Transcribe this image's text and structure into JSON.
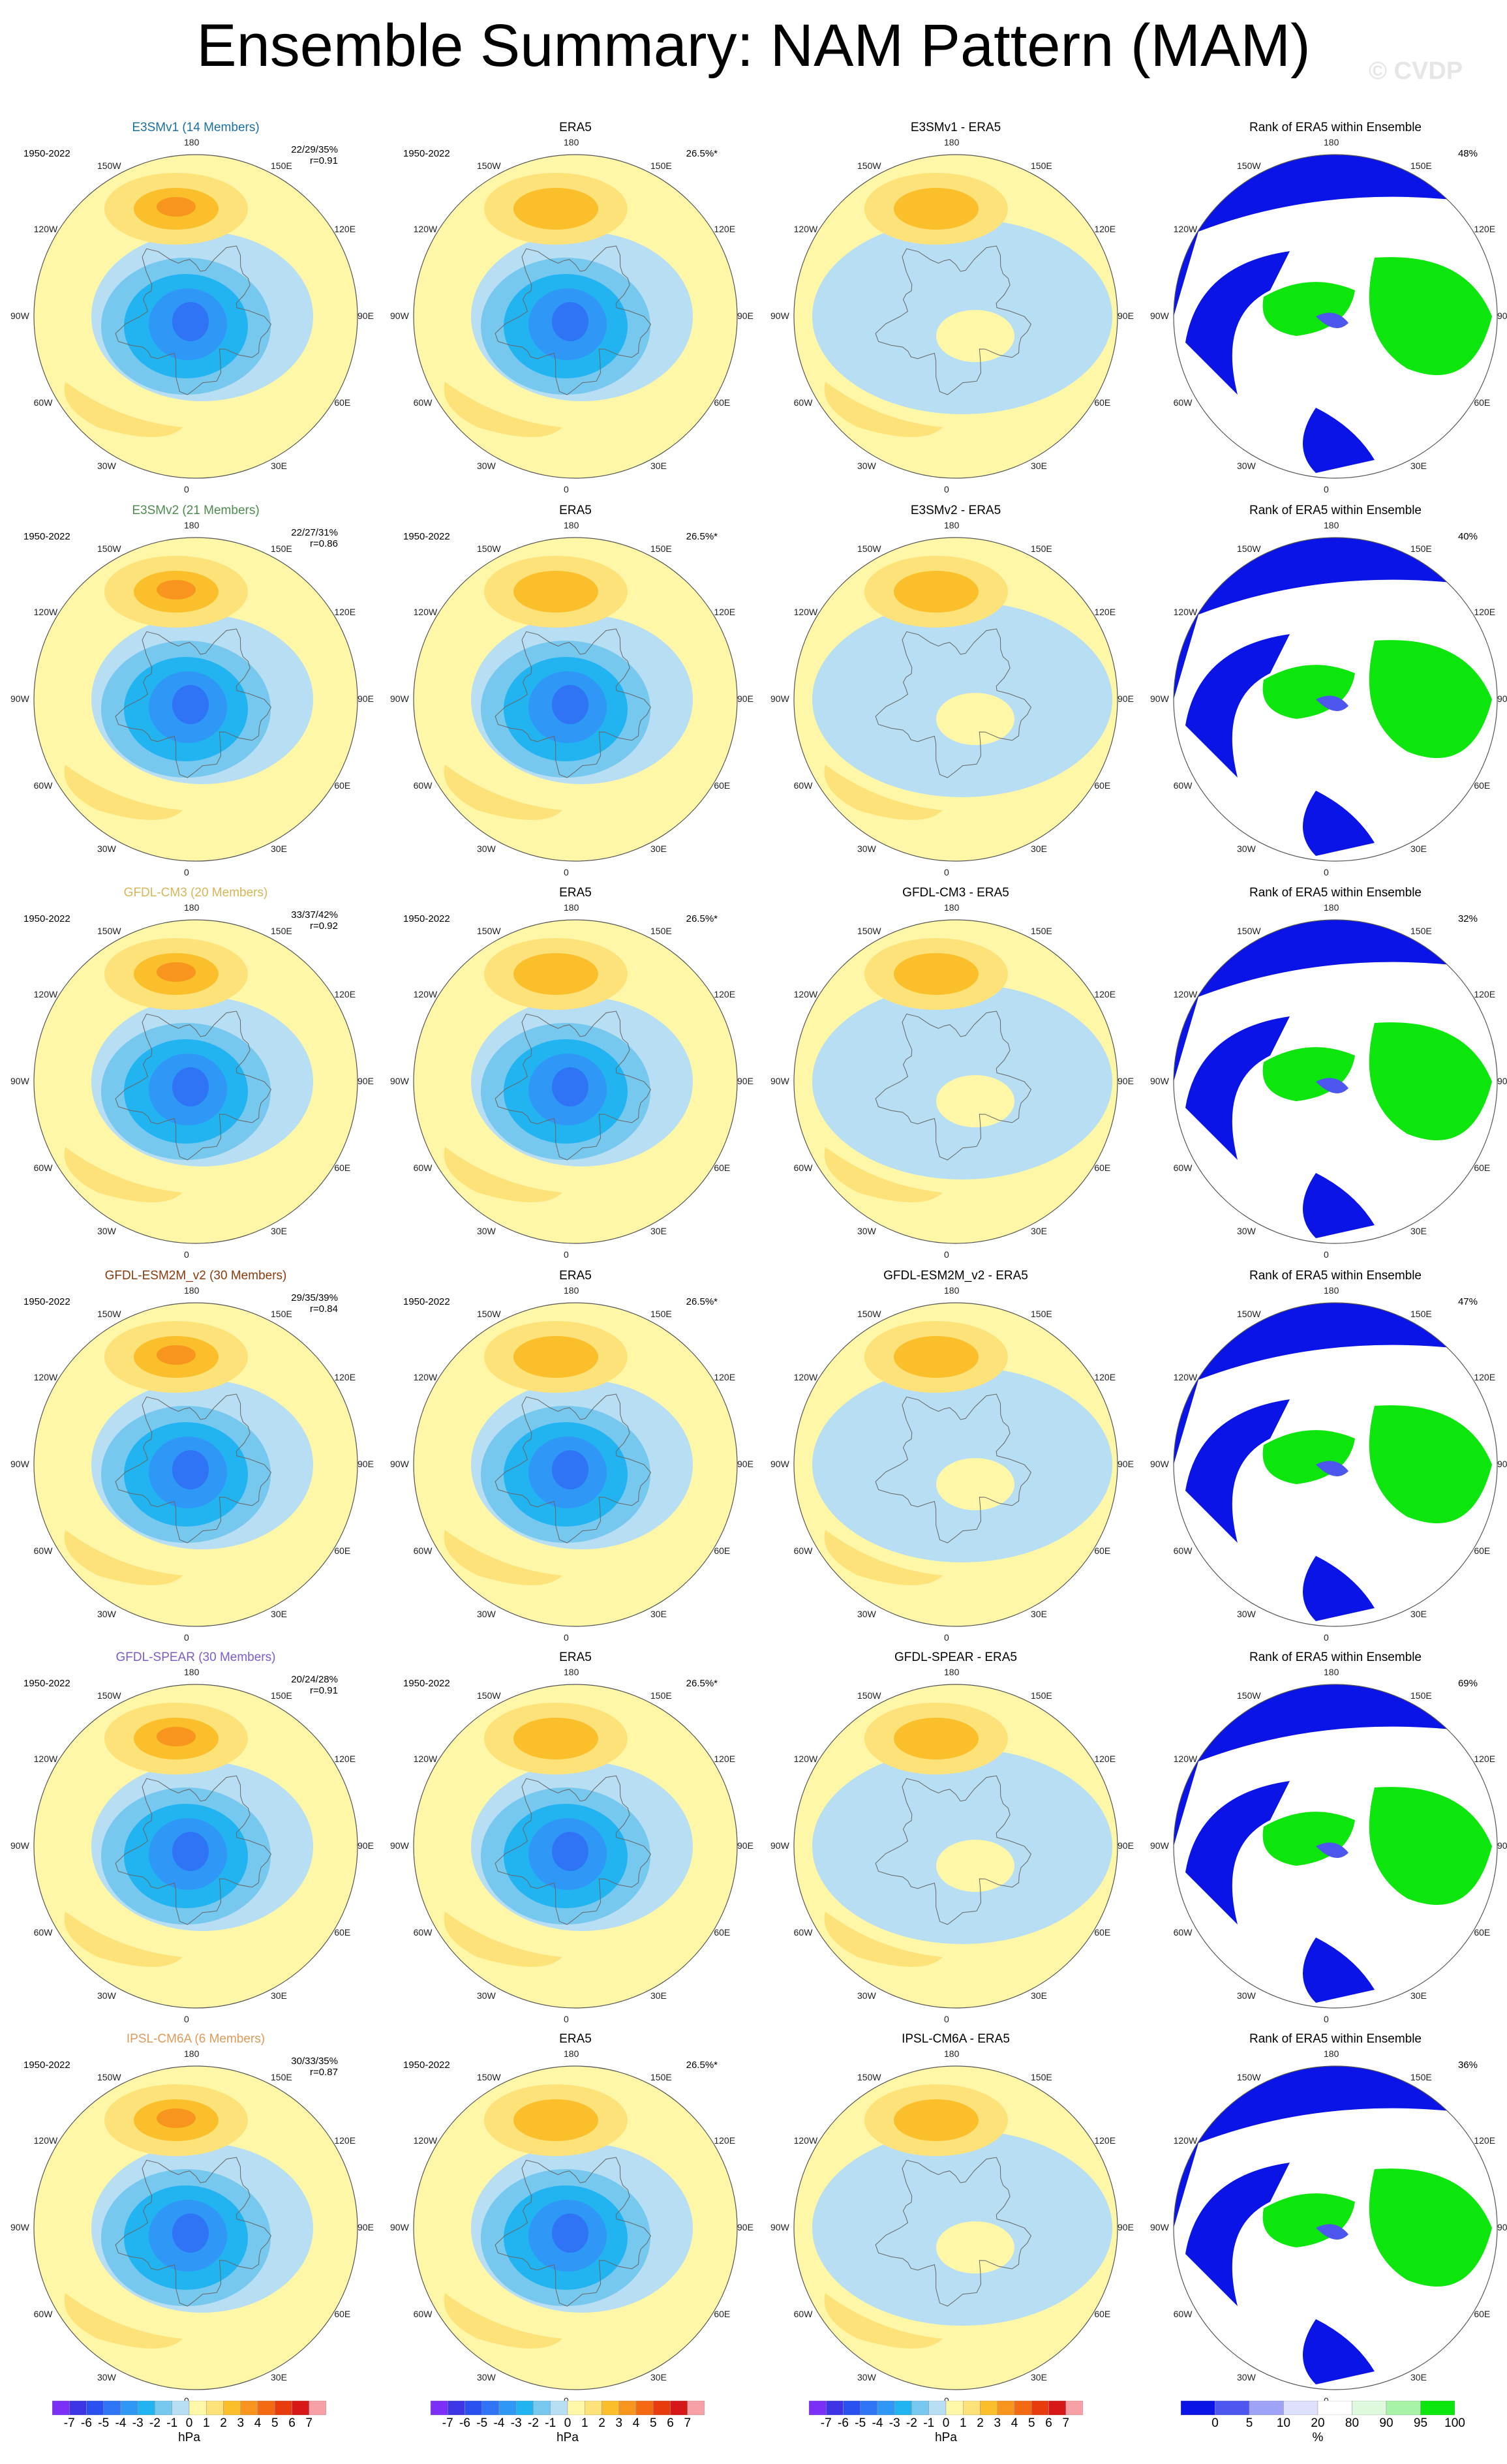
{
  "title": "Ensemble Summary: NAM Pattern (MAM)",
  "watermark": "© CVDP",
  "period": "1950-2022",
  "era5_pct": "26.5%*",
  "lon_labels": [
    "180",
    "150E",
    "120E",
    "90E",
    "60E",
    "30E",
    "0",
    "30W",
    "60W",
    "90W",
    "120W",
    "150W"
  ],
  "rows": [
    {
      "model": "E3SMv1 (14 Members)",
      "model_color": "#1a6fa3",
      "stats": "22/29/35%",
      "r": "r=0.91",
      "diff_title": "E3SMv1 - ERA5",
      "rank_pct": "48%"
    },
    {
      "model": "E3SMv2 (21 Members)",
      "model_color": "#4f8a4f",
      "stats": "22/27/31%",
      "r": "r=0.86",
      "diff_title": "E3SMv2 - ERA5",
      "rank_pct": "40%"
    },
    {
      "model": "GFDL-CM3 (20 Members)",
      "model_color": "#d7b65a",
      "stats": "33/37/42%",
      "r": "r=0.92",
      "diff_title": "GFDL-CM3 - ERA5",
      "rank_pct": "32%"
    },
    {
      "model": "GFDL-ESM2M_v2 (30 Members)",
      "model_color": "#8b3a0e",
      "stats": "29/35/39%",
      "r": "r=0.84",
      "diff_title": "GFDL-ESM2M_v2 - ERA5",
      "rank_pct": "47%"
    },
    {
      "model": "GFDL-SPEAR (30 Members)",
      "model_color": "#7d5cc9",
      "stats": "20/24/28%",
      "r": "r=0.91",
      "diff_title": "GFDL-SPEAR - ERA5",
      "rank_pct": "69%"
    },
    {
      "model": "IPSL-CM6A (6 Members)",
      "model_color": "#e09a5a",
      "stats": "30/33/35%",
      "r": "r=0.87",
      "diff_title": "IPSL-CM6A - ERA5",
      "rank_pct": "36%"
    }
  ],
  "obs_title": "ERA5",
  "rank_title": "Rank of ERA5 within Ensemble",
  "colorbars": {
    "hpa": {
      "ticks": [
        "-7",
        "-6",
        "-5",
        "-4",
        "-3",
        "-2",
        "-1",
        "0",
        "1",
        "2",
        "3",
        "4",
        "5",
        "6",
        "7"
      ],
      "units": "hPa",
      "colors": [
        "#7b2ff7",
        "#3d34e6",
        "#2a50f0",
        "#2f74f5",
        "#2f97f5",
        "#22b4f0",
        "#76c8ee",
        "#b7def2",
        "#fff7a8",
        "#fde27a",
        "#fbbf2b",
        "#f7951e",
        "#f36a12",
        "#e83b0e",
        "#d61818",
        "#f7a0a6"
      ]
    },
    "pct": {
      "ticks": [
        "0",
        "5",
        "10",
        "20",
        "80",
        "90",
        "95",
        "100"
      ],
      "units": "%",
      "colors": [
        "#0a14e6",
        "#4d56ef",
        "#9ea3f5",
        "#dfe0fb",
        "#ffffff",
        "#dff9df",
        "#a9f3a9",
        "#0ce60c"
      ]
    }
  }
}
